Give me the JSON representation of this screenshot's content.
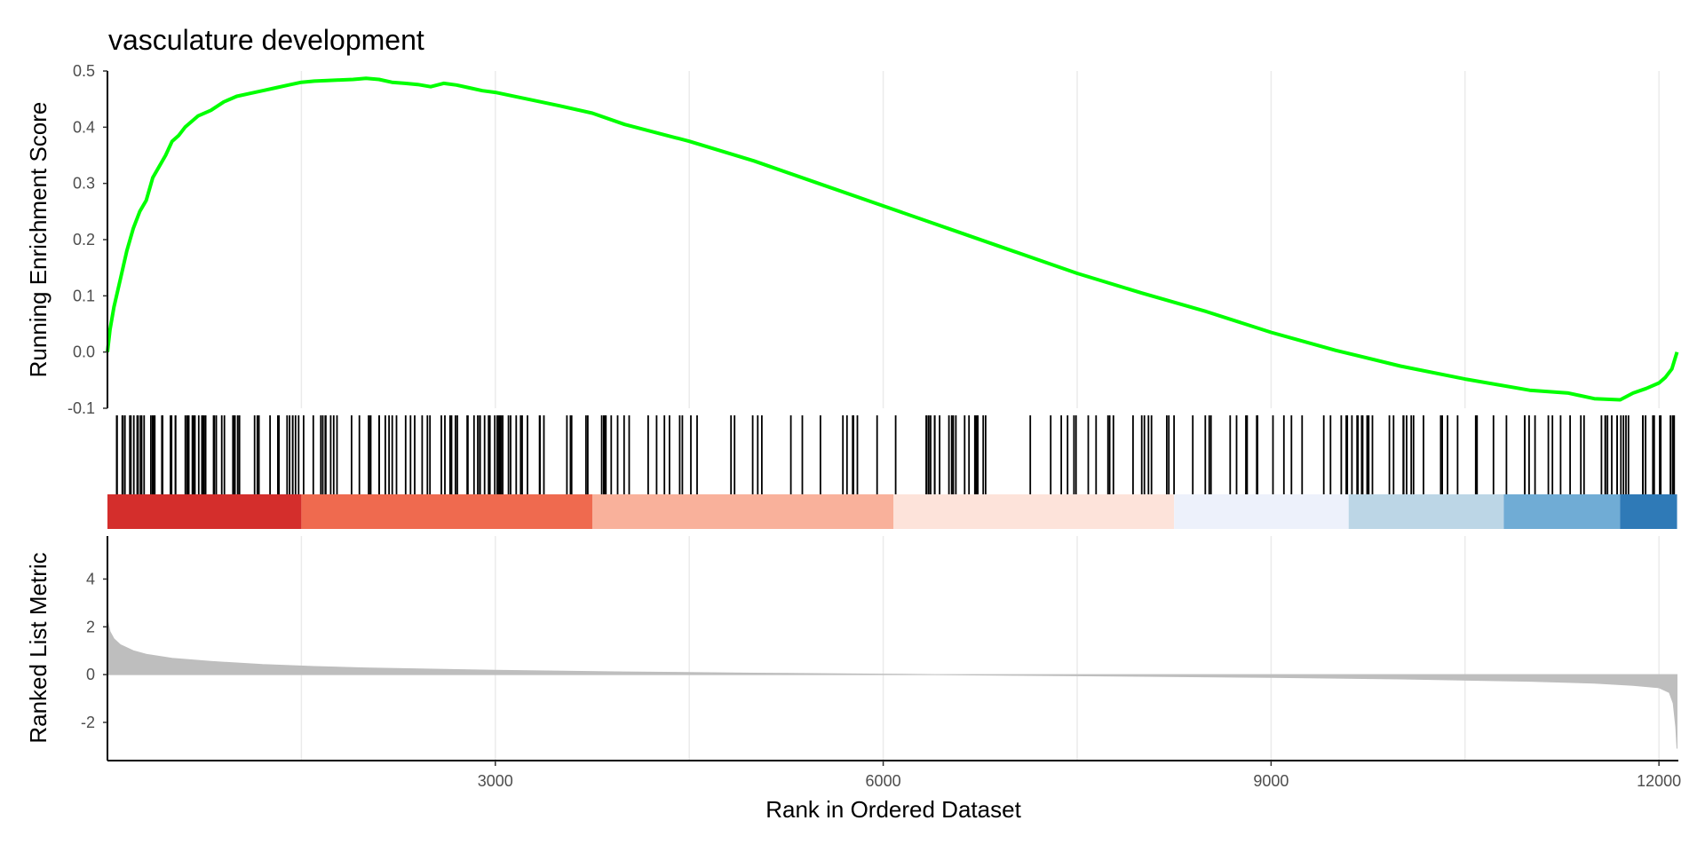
{
  "chart_data": {
    "type": "line",
    "title": "vasculature development",
    "xlabel": "Rank in Ordered Dataset",
    "xlim": [
      0,
      12150
    ],
    "x_ticks": [
      3000,
      6000,
      9000,
      12000
    ],
    "x_tick_labels": [
      "3000",
      "6000",
      "9000",
      "12000"
    ],
    "vertical_grid": [
      1500,
      3000,
      4500,
      6000,
      7500,
      9000,
      10500,
      12000
    ],
    "panels": [
      {
        "id": "running_es",
        "ylabel": "Running Enrichment Score",
        "ylim": [
          -0.1,
          0.5
        ],
        "y_ticks": [
          -0.1,
          0.0,
          0.1,
          0.2,
          0.3,
          0.4,
          0.5
        ],
        "y_tick_labels": [
          "-0.1",
          "0.0",
          "0.1",
          "0.2",
          "0.3",
          "0.4",
          "0.5"
        ],
        "line_color": "#00ff00",
        "series": [
          {
            "x": [
              0,
              20,
              50,
              100,
              150,
              200,
              250,
              300,
              350,
              400,
              450,
              500,
              550,
              600,
              700,
              800,
              900,
              1000,
              1100,
              1200,
              1300,
              1400,
              1500,
              1600,
              1700,
              1800,
              1900,
              2000,
              2100,
              2200,
              2300,
              2400,
              2500,
              2600,
              2700,
              2800,
              2900,
              3000,
              3250,
              3500,
              3750,
              4000,
              4500,
              5000,
              5500,
              6000,
              6500,
              7000,
              7500,
              8000,
              8500,
              9000,
              9500,
              10000,
              10500,
              11000,
              11300,
              11500,
              11700,
              11800,
              11900,
              12000,
              12050,
              12100,
              12140
            ],
            "y": [
              0.0,
              0.04,
              0.08,
              0.13,
              0.18,
              0.22,
              0.25,
              0.27,
              0.31,
              0.33,
              0.35,
              0.375,
              0.385,
              0.4,
              0.42,
              0.43,
              0.445,
              0.455,
              0.46,
              0.465,
              0.47,
              0.475,
              0.48,
              0.482,
              0.483,
              0.484,
              0.485,
              0.487,
              0.485,
              0.48,
              0.478,
              0.476,
              0.472,
              0.478,
              0.475,
              0.47,
              0.465,
              0.462,
              0.45,
              0.438,
              0.425,
              0.405,
              0.375,
              0.34,
              0.3,
              0.26,
              0.22,
              0.18,
              0.14,
              0.105,
              0.072,
              0.035,
              0.003,
              -0.025,
              -0.048,
              -0.068,
              -0.073,
              -0.083,
              -0.085,
              -0.073,
              -0.065,
              -0.055,
              -0.045,
              -0.03,
              0.0
            ]
          }
        ]
      },
      {
        "id": "gene_hits",
        "type": "rug",
        "tick_color": "#000000",
        "hit_regions": [
          [
            0,
            1500,
            1.0
          ],
          [
            1500,
            2200,
            0.55
          ],
          [
            2200,
            2600,
            0.5
          ],
          [
            2600,
            3000,
            0.9
          ],
          [
            3000,
            3700,
            0.55
          ],
          [
            3700,
            5500,
            0.3
          ],
          [
            5500,
            6000,
            0.3
          ],
          [
            6000,
            6800,
            0.55
          ],
          [
            6800,
            7100,
            0.0
          ],
          [
            7100,
            7600,
            0.3
          ],
          [
            7600,
            8500,
            0.35
          ],
          [
            8500,
            9500,
            0.3
          ],
          [
            9500,
            10000,
            0.55
          ],
          [
            10000,
            10800,
            0.35
          ],
          [
            10800,
            11500,
            0.35
          ],
          [
            11500,
            12140,
            0.75
          ]
        ],
        "color_bands": [
          {
            "from": 0,
            "to": 1500,
            "color": "#d42e2c"
          },
          {
            "from": 1500,
            "to": 3750,
            "color": "#ef6a4f"
          },
          {
            "from": 3750,
            "to": 6080,
            "color": "#f9b19b"
          },
          {
            "from": 6080,
            "to": 8250,
            "color": "#fde3da"
          },
          {
            "from": 8250,
            "to": 9600,
            "color": "#edf1fb"
          },
          {
            "from": 9600,
            "to": 10800,
            "color": "#bcd6e6"
          },
          {
            "from": 10800,
            "to": 11700,
            "color": "#70acd5"
          },
          {
            "from": 11700,
            "to": 12140,
            "color": "#2f7ab7"
          }
        ]
      },
      {
        "id": "ranked_metric",
        "ylabel": "Ranked List Metric",
        "ylim": [
          -3.6,
          5.8
        ],
        "y_ticks": [
          -2,
          0,
          2,
          4
        ],
        "y_tick_labels": [
          "-2",
          "0",
          "2",
          "4"
        ],
        "fill_color": "#bebebe",
        "series": [
          {
            "x": [
              0,
              20,
              50,
              100,
              200,
              300,
              500,
              800,
              1200,
              1600,
              2000,
              3000,
              4000,
              5000,
              6000,
              6400,
              7000,
              8000,
              9000,
              10000,
              11000,
              11500,
              11800,
              12000,
              12080,
              12110,
              12130,
              12140
            ],
            "y": [
              2.3,
              1.8,
              1.5,
              1.25,
              1.0,
              0.85,
              0.68,
              0.55,
              0.42,
              0.34,
              0.28,
              0.18,
              0.11,
              0.06,
              0.02,
              0.0,
              -0.03,
              -0.07,
              -0.12,
              -0.18,
              -0.28,
              -0.36,
              -0.45,
              -0.55,
              -0.75,
              -1.2,
              -2.2,
              -3.1
            ]
          }
        ]
      }
    ]
  }
}
